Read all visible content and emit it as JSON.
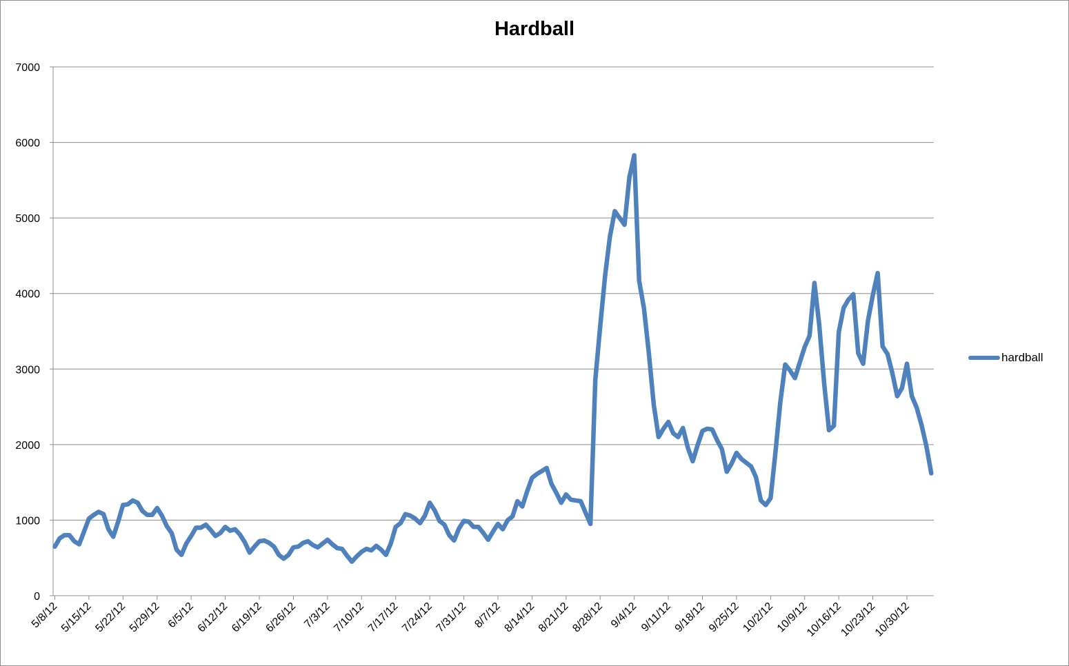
{
  "chart_data": {
    "type": "line",
    "title": "Hardball",
    "xlabel": "",
    "ylabel": "",
    "ylim": [
      0,
      7000
    ],
    "yticks": [
      "0",
      "1000",
      "2000",
      "3000",
      "4000",
      "5000",
      "6000",
      "7000"
    ],
    "xtick_labels": [
      "5/8/12",
      "5/15/12",
      "5/22/12",
      "5/29/12",
      "6/5/12",
      "6/12/12",
      "6/19/12",
      "6/26/12",
      "7/3/12",
      "7/10/12",
      "7/17/12",
      "7/24/12",
      "7/31/12",
      "8/7/12",
      "8/14/12",
      "8/21/12",
      "8/28/12",
      "9/4/12",
      "9/11/12",
      "9/18/12",
      "9/25/12",
      "10/2/12",
      "10/9/12",
      "10/16/12",
      "10/23/12",
      "10/30/12"
    ],
    "grid": "horizontal",
    "legend_position": "right",
    "series_color": "#4f81bd",
    "series": [
      {
        "name": "hardball",
        "values": [
          650,
          760,
          800,
          800,
          720,
          680,
          850,
          1020,
          1070,
          1110,
          1080,
          880,
          780,
          980,
          1200,
          1210,
          1260,
          1230,
          1120,
          1070,
          1070,
          1160,
          1060,
          920,
          830,
          610,
          540,
          690,
          790,
          900,
          900,
          940,
          870,
          790,
          830,
          910,
          860,
          880,
          810,
          710,
          570,
          650,
          720,
          730,
          700,
          650,
          540,
          490,
          540,
          640,
          650,
          700,
          720,
          670,
          640,
          690,
          740,
          680,
          630,
          620,
          530,
          450,
          520,
          580,
          620,
          600,
          660,
          610,
          540,
          690,
          910,
          960,
          1080,
          1060,
          1020,
          960,
          1060,
          1230,
          1130,
          990,
          940,
          800,
          730,
          890,
          990,
          980,
          910,
          910,
          830,
          740,
          850,
          950,
          880,
          1000,
          1050,
          1250,
          1180,
          1380,
          1560,
          1610,
          1650,
          1690,
          1480,
          1360,
          1230,
          1340,
          1270,
          1260,
          1250,
          1100,
          950,
          2860,
          3560,
          4230,
          4750,
          5090,
          5000,
          4910,
          5540,
          5830,
          4170,
          3800,
          3210,
          2530,
          2100,
          2210,
          2300,
          2150,
          2100,
          2220,
          1960,
          1780,
          1990,
          2180,
          2210,
          2200,
          2060,
          1940,
          1640,
          1750,
          1890,
          1810,
          1760,
          1710,
          1570,
          1260,
          1200,
          1290,
          1900,
          2560,
          3060,
          2980,
          2880,
          3090,
          3290,
          3440,
          4140,
          3580,
          2810,
          2190,
          2250,
          3490,
          3810,
          3920,
          3990,
          3210,
          3070,
          3640,
          3980,
          4270,
          3300,
          3200,
          2950,
          2640,
          2750,
          3070,
          2640,
          2490,
          2260,
          1980,
          1620
        ]
      }
    ]
  }
}
